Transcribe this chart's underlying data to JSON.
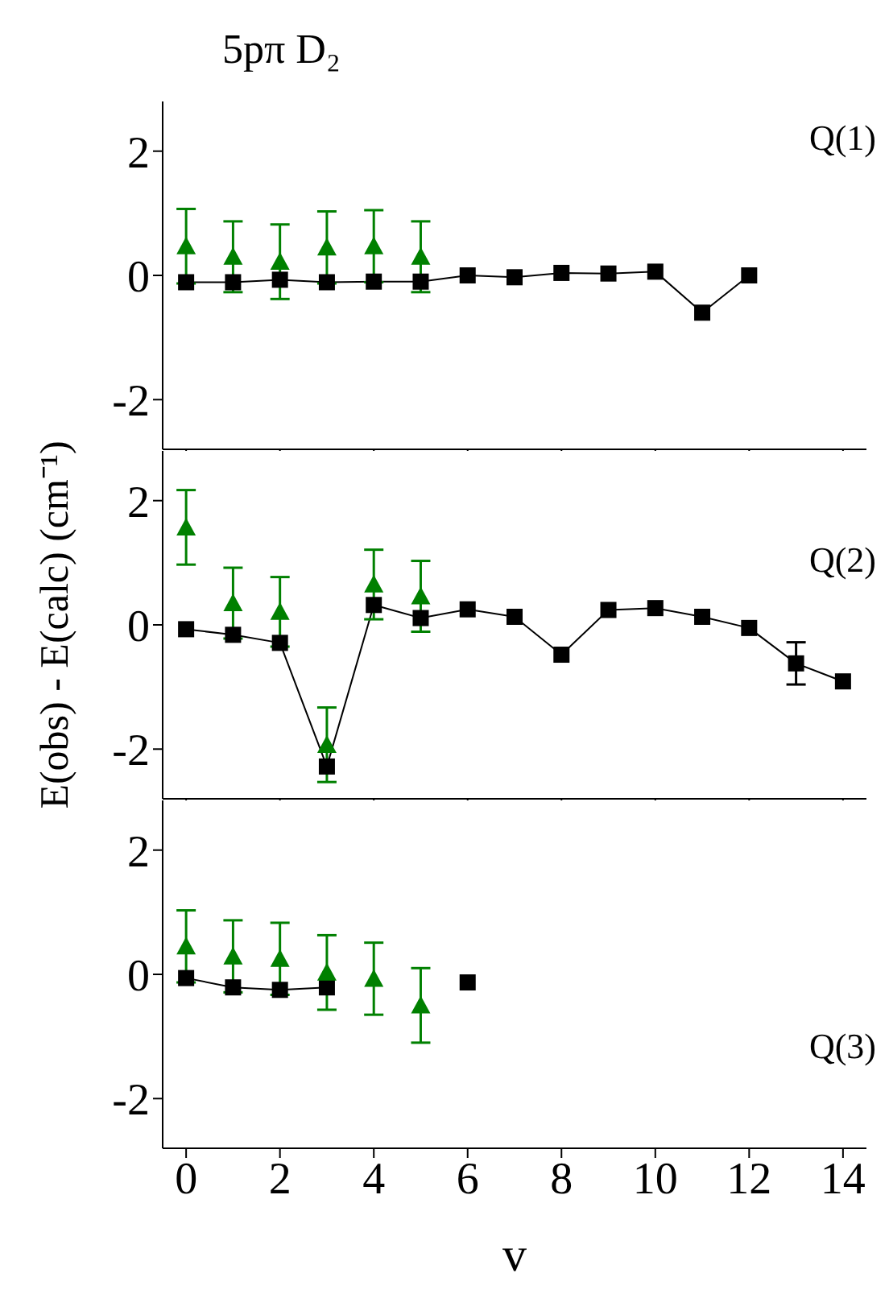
{
  "chart_data": [
    {
      "type": "line",
      "title": "5pπ D₂",
      "annotations": [
        "Q(1)"
      ],
      "xlim": [
        -0.5,
        14.5
      ],
      "xticks": [
        0,
        2,
        4,
        6,
        8,
        10,
        12,
        14
      ],
      "ylim": [
        -2.8,
        2.8
      ],
      "yticks": [
        -2,
        0,
        2
      ],
      "tick_labels": "y",
      "series": [
        {
          "type": "line",
          "color": "#000000",
          "marker": "square",
          "x": [
            0,
            1,
            2,
            3,
            4,
            5,
            6,
            7,
            8,
            9,
            10,
            11,
            12
          ],
          "values": [
            -0.11,
            -0.11,
            -0.07,
            -0.11,
            -0.1,
            -0.1,
            0,
            -0.03,
            0.04,
            0.03,
            0.06,
            -0.6,
            0
          ]
        },
        {
          "type": "scatter",
          "color": "#008000",
          "marker": "triangle",
          "x": [
            0,
            1,
            2,
            3,
            4,
            5
          ],
          "values": [
            0.47,
            0.3,
            0.22,
            0.45,
            0.47,
            0.3
          ],
          "errors": [
            0.6,
            0.57,
            0.6,
            0.58,
            0.58,
            0.57
          ]
        }
      ]
    },
    {
      "type": "line",
      "ylabel": "E(obs) - E(calc) (cm⁻¹)",
      "annotations": [
        "Q(2)"
      ],
      "xlim": [
        -0.5,
        14.5
      ],
      "xticks": [
        0,
        2,
        4,
        6,
        8,
        10,
        12,
        14
      ],
      "ylim": [
        -2.8,
        2.8
      ],
      "yticks": [
        -2,
        0,
        2
      ],
      "tick_labels": "y",
      "series": [
        {
          "type": "line",
          "color": "#000000",
          "marker": "square",
          "x": [
            0,
            1,
            2,
            3,
            4,
            5,
            6,
            7,
            8,
            9,
            10,
            11,
            12,
            13,
            14
          ],
          "values": [
            -0.07,
            -0.16,
            -0.29,
            -2.28,
            0.32,
            0.11,
            0.25,
            0.13,
            -0.48,
            0.24,
            0.27,
            0.13,
            -0.05,
            -0.62,
            -0.91
          ],
          "errors": [
            null,
            null,
            null,
            null,
            null,
            null,
            null,
            null,
            null,
            null,
            null,
            null,
            null,
            0.34,
            null
          ]
        },
        {
          "type": "scatter",
          "color": "#008000",
          "marker": "triangle",
          "x": [
            0,
            1,
            2,
            3,
            4,
            5
          ],
          "values": [
            1.57,
            0.35,
            0.21,
            -1.93,
            0.65,
            0.46
          ],
          "errors": [
            0.6,
            0.57,
            0.56,
            0.6,
            0.56,
            0.57
          ]
        }
      ]
    },
    {
      "type": "line",
      "xlabel": "v",
      "annotations": [
        "Q(3)"
      ],
      "xlim": [
        -0.5,
        14.5
      ],
      "xticks": [
        0,
        2,
        4,
        6,
        8,
        10,
        12,
        14
      ],
      "ylim": [
        -2.8,
        2.8
      ],
      "yticks": [
        -2,
        0,
        2
      ],
      "series": [
        {
          "type": "line",
          "color": "#000000",
          "marker": "square",
          "x": [
            0,
            1,
            2,
            3,
            4,
            5,
            6
          ],
          "values": [
            -0.06,
            -0.21,
            -0.25,
            -0.21,
            null,
            null,
            -0.13
          ]
        },
        {
          "type": "scatter",
          "color": "#008000",
          "marker": "triangle",
          "x": [
            0,
            1,
            2,
            3,
            4,
            5
          ],
          "values": [
            0.45,
            0.29,
            0.25,
            0.03,
            -0.07,
            -0.5
          ],
          "errors": [
            0.58,
            0.58,
            0.58,
            0.6,
            0.58,
            0.6
          ]
        }
      ]
    }
  ]
}
